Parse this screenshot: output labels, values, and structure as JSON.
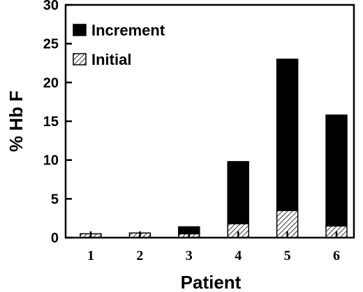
{
  "chart_data": {
    "type": "bar",
    "stacked": true,
    "categories": [
      "1",
      "2",
      "3",
      "4",
      "5",
      "6"
    ],
    "series": [
      {
        "name": "Initial",
        "values": [
          0.5,
          0.6,
          0.5,
          1.8,
          3.5,
          1.5
        ],
        "pattern": "diagonal-hatch",
        "color": "#000000"
      },
      {
        "name": "Increment",
        "values": [
          0.0,
          0.0,
          0.9,
          8.0,
          19.5,
          14.3
        ],
        "pattern": "solid",
        "color": "#000000"
      }
    ],
    "xlabel": "Patient",
    "ylabel": "% Hb F",
    "ylim": [
      0,
      30
    ],
    "yticks": [
      "0",
      "5",
      "10",
      "15",
      "20",
      "25",
      "30"
    ],
    "grid": false,
    "legend_position": "top-left"
  }
}
